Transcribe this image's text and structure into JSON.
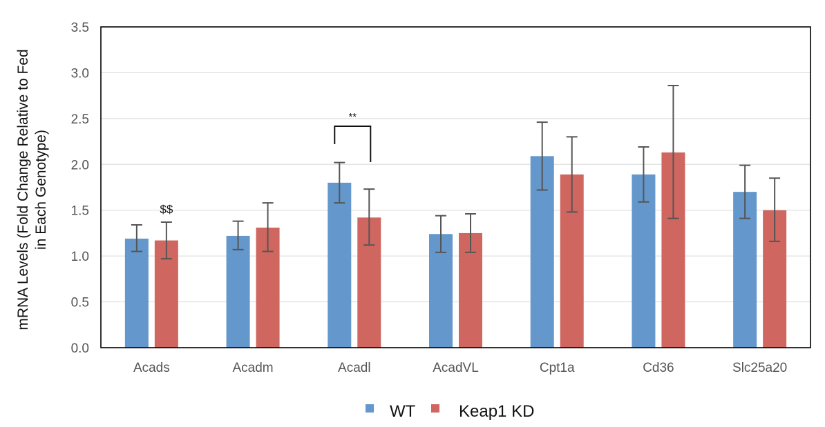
{
  "chart_data": {
    "type": "bar",
    "categories": [
      "Acads",
      "Acadm",
      "Acadl",
      "AcadVL",
      "Cpt1a",
      "Cd36",
      "Slc25a20"
    ],
    "series": [
      {
        "name": "WT",
        "color": "#6497CB",
        "values": [
          1.19,
          1.22,
          1.8,
          1.24,
          2.09,
          1.89,
          1.7
        ],
        "error_low": [
          1.05,
          1.07,
          1.58,
          1.04,
          1.72,
          1.59,
          1.41
        ],
        "error_high": [
          1.34,
          1.38,
          2.02,
          1.44,
          2.46,
          2.19,
          1.99
        ]
      },
      {
        "name": "Keap1 KD",
        "color": "#CF665F",
        "values": [
          1.17,
          1.31,
          1.42,
          1.25,
          1.89,
          2.13,
          1.5
        ],
        "error_low": [
          0.97,
          1.05,
          1.12,
          1.04,
          1.48,
          1.41,
          1.16
        ],
        "error_high": [
          1.37,
          1.58,
          1.73,
          1.46,
          2.3,
          2.86,
          1.85
        ]
      }
    ],
    "ylabel_line1": "mRNA Levels (Fold Change Relative to Fed",
    "ylabel_line2": "in Each Genotype)",
    "ylim": [
      0,
      3.5
    ],
    "yticks": [
      "0.0",
      "0.5",
      "1.0",
      "1.5",
      "2.0",
      "2.5",
      "3.0",
      "3.5"
    ],
    "grid": true,
    "legend_position": "bottom-center",
    "annotations": {
      "dollar": {
        "text": "$$",
        "category": "Acads",
        "series": "Keap1 KD"
      },
      "stars": {
        "text": "**",
        "category": "Acadl"
      }
    }
  }
}
